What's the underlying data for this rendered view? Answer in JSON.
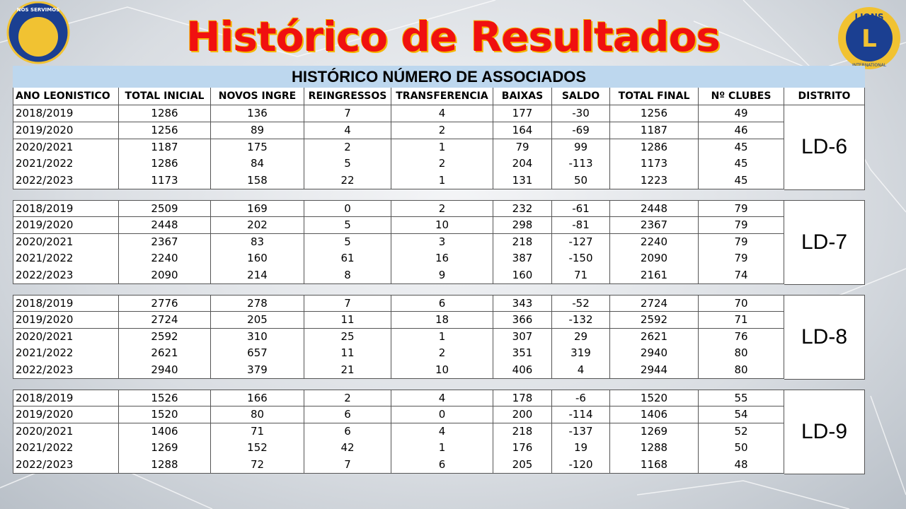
{
  "header": {
    "title": "Histórico de Resultados"
  },
  "logos": {
    "left": {
      "text": "NÓS SERVIMOS"
    },
    "right": {
      "top": "LIONS",
      "bottom": "INTERNATIONAL"
    }
  },
  "table": {
    "title": "HISTÓRICO NÚMERO DE ASSOCIADOS",
    "columns": [
      "ANO LEONISTICO",
      "TOTAL INICIAL",
      "NOVOS INGRE",
      "REINGRESSOS",
      "TRANSFERENCIA",
      "BAIXAS",
      "SALDO",
      "TOTAL FINAL",
      "Nº CLUBES",
      "DISTRITO"
    ],
    "groups": [
      {
        "district": "LD-6",
        "rows": [
          [
            "2018/2019",
            1286,
            136,
            7,
            4,
            177,
            -30,
            1256,
            49
          ],
          [
            "2019/2020",
            1256,
            89,
            4,
            2,
            164,
            -69,
            1187,
            46
          ],
          [
            "2020/2021",
            1187,
            175,
            2,
            1,
            79,
            99,
            1286,
            45
          ],
          [
            "2021/2022",
            1286,
            84,
            5,
            2,
            204,
            -113,
            1173,
            45
          ],
          [
            "2022/2023",
            1173,
            158,
            22,
            1,
            131,
            50,
            1223,
            45
          ]
        ]
      },
      {
        "district": "LD-7",
        "rows": [
          [
            "2018/2019",
            2509,
            169,
            0,
            2,
            232,
            -61,
            2448,
            79
          ],
          [
            "2019/2020",
            2448,
            202,
            5,
            10,
            298,
            -81,
            2367,
            79
          ],
          [
            "2020/2021",
            2367,
            83,
            5,
            3,
            218,
            -127,
            2240,
            79
          ],
          [
            "2021/2022",
            2240,
            160,
            61,
            16,
            387,
            -150,
            2090,
            79
          ],
          [
            "2022/2023",
            2090,
            214,
            8,
            9,
            160,
            71,
            2161,
            74
          ]
        ]
      },
      {
        "district": "LD-8",
        "rows": [
          [
            "2018/2019",
            2776,
            278,
            7,
            6,
            343,
            -52,
            2724,
            70
          ],
          [
            "2019/2020",
            2724,
            205,
            11,
            18,
            366,
            -132,
            2592,
            71
          ],
          [
            "2020/2021",
            2592,
            310,
            25,
            1,
            307,
            29,
            2621,
            76
          ],
          [
            "2021/2022",
            2621,
            657,
            11,
            2,
            351,
            319,
            2940,
            80
          ],
          [
            "2022/2023",
            2940,
            379,
            21,
            10,
            406,
            4,
            2944,
            80
          ]
        ]
      },
      {
        "district": "LD-9",
        "rows": [
          [
            "2018/2019",
            1526,
            166,
            2,
            4,
            178,
            -6,
            1520,
            55
          ],
          [
            "2019/2020",
            1520,
            80,
            6,
            0,
            200,
            -114,
            1406,
            54
          ],
          [
            "2020/2021",
            1406,
            71,
            6,
            4,
            218,
            -137,
            1269,
            52
          ],
          [
            "2021/2022",
            1269,
            152,
            42,
            1,
            176,
            19,
            1288,
            50
          ],
          [
            "2022/2023",
            1288,
            72,
            7,
            6,
            205,
            -120,
            1168,
            48
          ]
        ]
      }
    ]
  }
}
